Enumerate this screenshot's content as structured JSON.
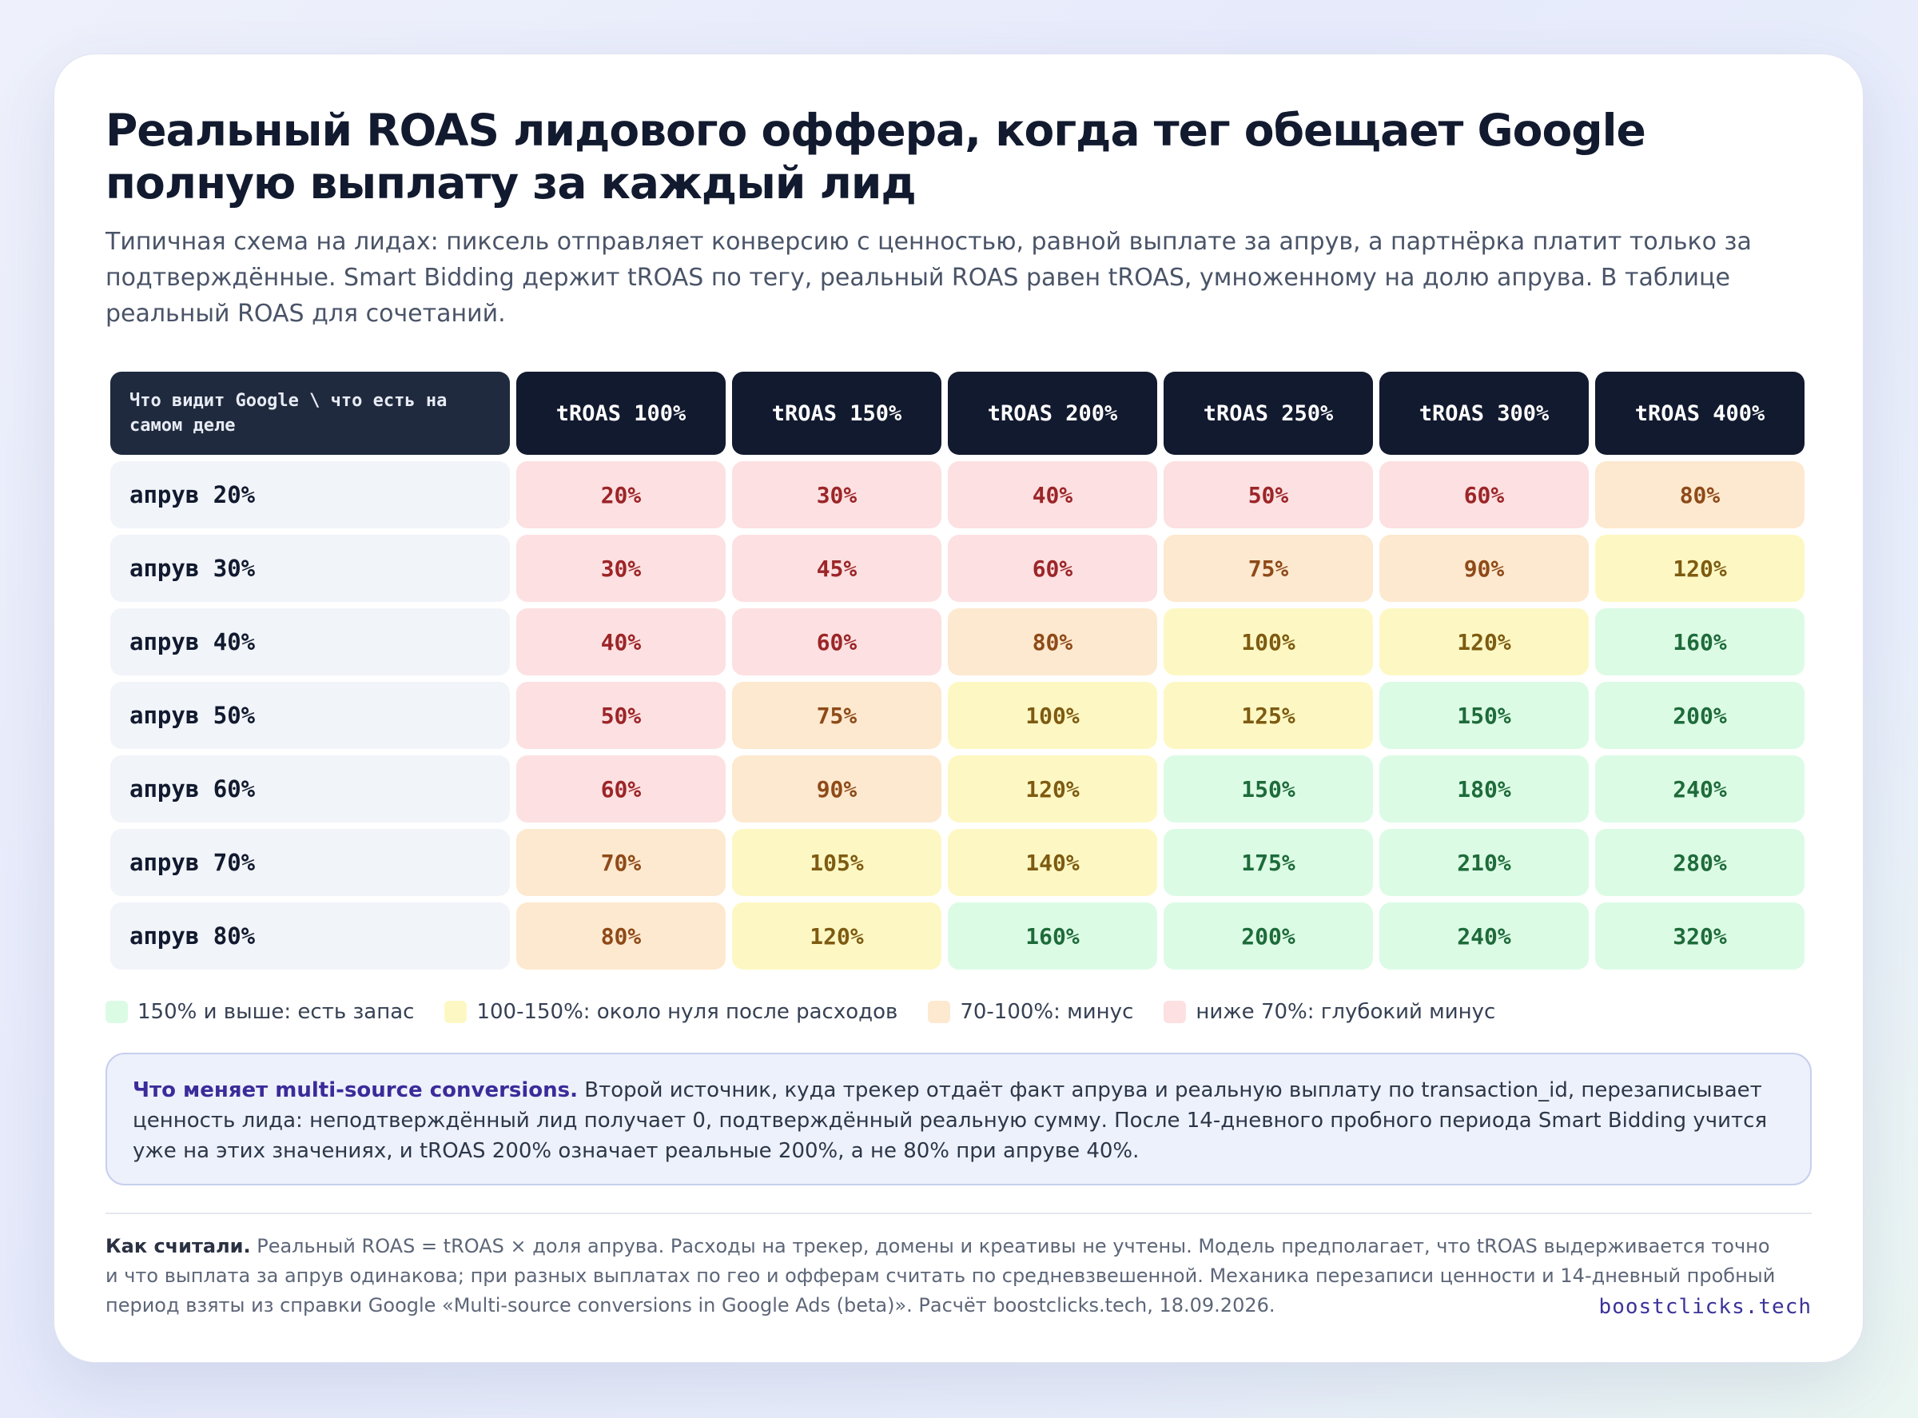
{
  "title": "Реальный ROAS лидового оффера, когда тег обещает Google полную выплату за каждый лид",
  "subtitle": "Типичная схема на лидах: пиксель отправляет конверсию с ценностью, равной выплате за апрув, а партнёрка платит только за подтверждённые. Smart Bidding держит tROAS по тегу, реальный ROAS равен tROAS, умноженному на долю апрува. В таблице реальный ROAS для сочетаний.",
  "colors": {
    "green": "#dcfbe5",
    "yellow": "#fdf8c3",
    "orange": "#fde9cf",
    "red": "#fde0e1",
    "header": "#121a2f"
  },
  "chart_data": {
    "type": "table",
    "corner_label": "Что видит Google \\ что есть на самом деле",
    "columns": [
      "tROAS 100%",
      "tROAS 150%",
      "tROAS 200%",
      "tROAS 250%",
      "tROAS 300%",
      "tROAS 400%"
    ],
    "rows": [
      {
        "label": "апрув 20%",
        "values": [
          "20%",
          "30%",
          "40%",
          "50%",
          "60%",
          "80%"
        ]
      },
      {
        "label": "апрув 30%",
        "values": [
          "30%",
          "45%",
          "60%",
          "75%",
          "90%",
          "120%"
        ]
      },
      {
        "label": "апрув 40%",
        "values": [
          "40%",
          "60%",
          "80%",
          "100%",
          "120%",
          "160%"
        ]
      },
      {
        "label": "апрув 50%",
        "values": [
          "50%",
          "75%",
          "100%",
          "125%",
          "150%",
          "200%"
        ]
      },
      {
        "label": "апрув 60%",
        "values": [
          "60%",
          "90%",
          "120%",
          "150%",
          "180%",
          "240%"
        ]
      },
      {
        "label": "апрув 70%",
        "values": [
          "70%",
          "105%",
          "140%",
          "175%",
          "210%",
          "280%"
        ]
      },
      {
        "label": "апрув 80%",
        "values": [
          "80%",
          "120%",
          "160%",
          "200%",
          "240%",
          "320%"
        ]
      }
    ]
  },
  "legend": [
    {
      "key": "green",
      "label": "150% и выше: есть запас"
    },
    {
      "key": "yellow",
      "label": "100-150%: около нуля после расходов"
    },
    {
      "key": "orange",
      "label": "70-100%: минус"
    },
    {
      "key": "red",
      "label": "ниже 70%: глубокий минус"
    }
  ],
  "note": {
    "lead": "Что меняет multi-source conversions.",
    "text": " Второй источник, куда трекер отдаёт факт апрува и реальную выплату по transaction_id, перезаписывает ценность лида: неподтверждённый лид получает 0, подтверждённый реальную сумму. После 14-дневного пробного периода Smart Bidding учится уже на этих значениях, и tROAS 200% означает реальные 200%, а не 80% при апруве 40%."
  },
  "footer": {
    "lead": "Как считали.",
    "text": " Реальный ROAS = tROAS × доля апрува. Расходы на трекер, домены и креативы не учтены. Модель предполагает, что tROAS выдерживается точно и что выплата за апрув одинакова; при разных выплатах по гео и офферам считать по средневзвешенной. Механика перезаписи ценности и 14-дневный пробный период взяты из справки Google «Multi-source conversions in Google Ads (beta)». Расчёт boostclicks.tech, 18.09.2026.",
    "brand": "boostclicks.tech"
  }
}
